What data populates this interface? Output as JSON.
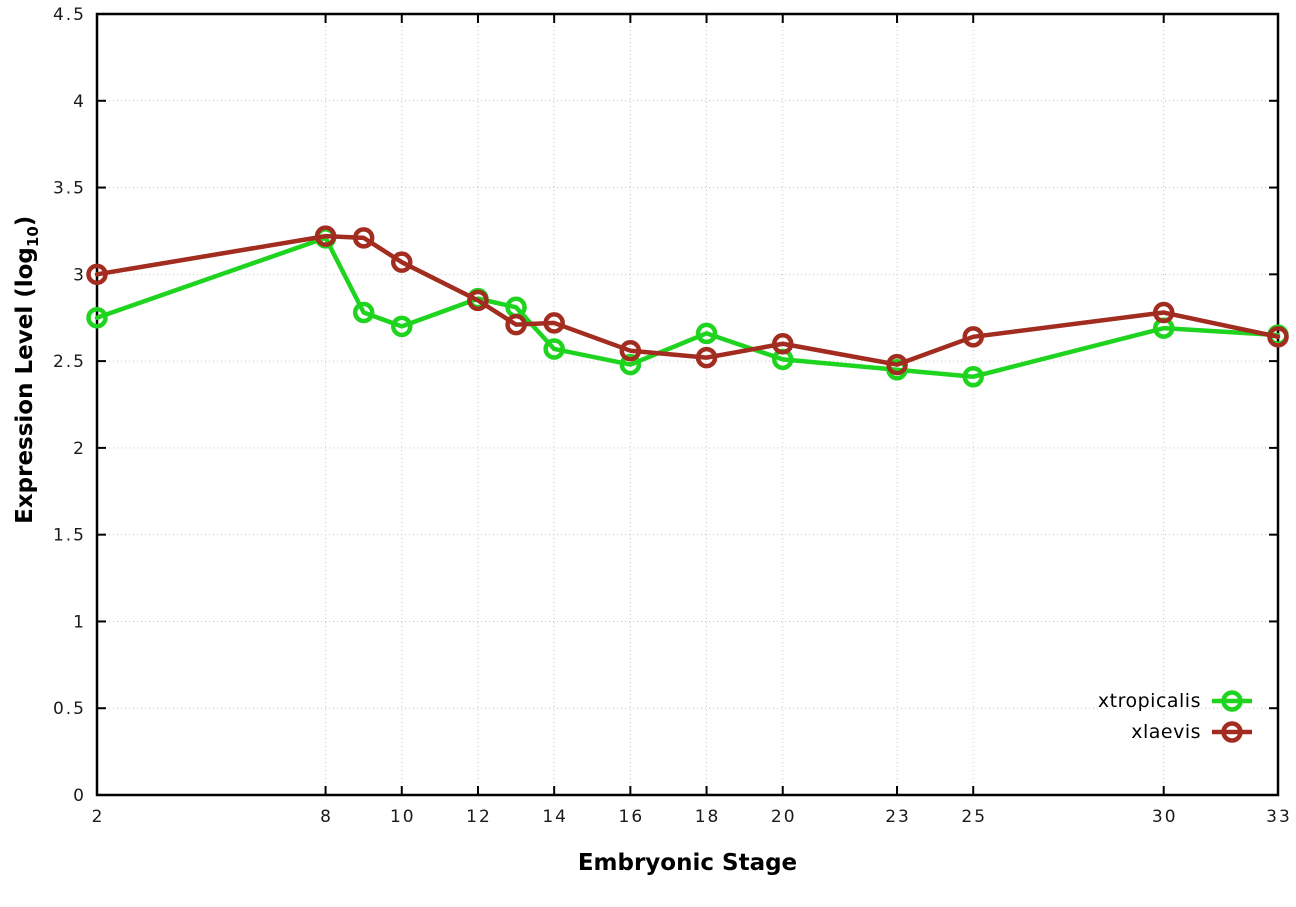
{
  "chart_data": {
    "type": "line",
    "title": "",
    "xlabel": "Embryonic Stage",
    "ylabel": "Expression Level (log10)",
    "ylabel_parts": {
      "pre": "Expression Level (log",
      "sub": "10",
      "post": ")"
    },
    "xlim": [
      2,
      33
    ],
    "ylim": [
      0,
      4.5
    ],
    "x_ticks": [
      2,
      8,
      10,
      12,
      14,
      16,
      18,
      20,
      23,
      25,
      30,
      33
    ],
    "y_ticks": [
      0,
      0.5,
      1,
      1.5,
      2,
      2.5,
      3,
      3.5,
      4,
      4.5
    ],
    "grid": true,
    "legend_position": "bottom-right",
    "x": [
      2,
      8,
      9,
      10,
      12,
      13,
      14,
      16,
      18,
      20,
      23,
      25,
      30,
      33
    ],
    "series": [
      {
        "name": "xtropicalis",
        "color": "#1ed41e",
        "marker": "open-circle",
        "values": [
          2.75,
          3.21,
          2.78,
          2.7,
          2.86,
          2.81,
          2.57,
          2.48,
          2.66,
          2.51,
          2.45,
          2.41,
          2.69,
          2.65
        ]
      },
      {
        "name": "xlaevis",
        "color": "#a22c20",
        "marker": "open-circle",
        "values": [
          3.0,
          3.22,
          3.21,
          3.07,
          2.85,
          2.71,
          2.72,
          2.56,
          2.52,
          2.6,
          2.48,
          2.64,
          2.78,
          2.64
        ]
      }
    ],
    "colors": {
      "grid": "#c8c8c8",
      "border": "#000000",
      "tick_text": "#1a1a1a"
    }
  }
}
